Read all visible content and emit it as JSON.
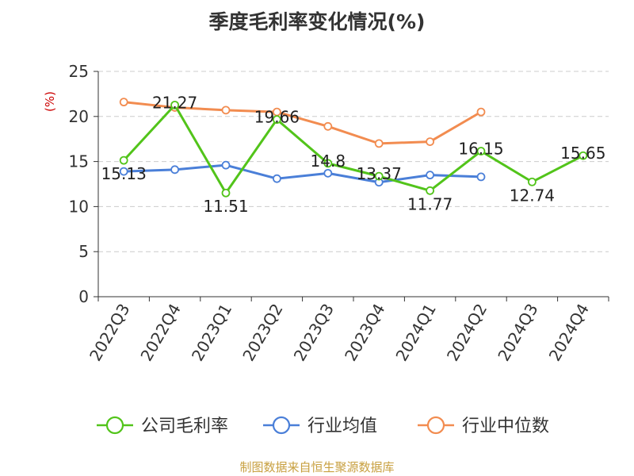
{
  "chart_data": {
    "type": "line",
    "title": "季度毛利率变化情况(%)",
    "y_unit": "(%)",
    "categories": [
      "2022Q3",
      "2022Q4",
      "2023Q1",
      "2023Q2",
      "2023Q3",
      "2023Q4",
      "2024Q1",
      "2024Q2",
      "2024Q3",
      "2024Q4"
    ],
    "ylim": [
      0,
      25
    ],
    "yticks": [
      0,
      5,
      10,
      15,
      20,
      25
    ],
    "grid": true,
    "legend_position": "bottom",
    "series": [
      {
        "name": "公司毛利率",
        "color": "#52c41a",
        "show_labels": true,
        "values": [
          15.13,
          21.27,
          11.51,
          19.66,
          14.8,
          13.37,
          11.77,
          16.15,
          12.74,
          15.65
        ],
        "labels": [
          "15.13",
          "21.27",
          "11.51",
          "19.66",
          "14.8",
          "13.37",
          "11.77",
          "16.15",
          "12.74",
          "15.65"
        ]
      },
      {
        "name": "行业均值",
        "color": "#4a7fd8",
        "show_labels": false,
        "values": [
          13.9,
          14.1,
          14.6,
          13.1,
          13.7,
          12.7,
          13.5,
          13.3,
          null,
          null
        ]
      },
      {
        "name": "行业中位数",
        "color": "#f28c50",
        "show_labels": false,
        "values": [
          21.6,
          21.0,
          20.7,
          20.5,
          18.9,
          17.0,
          17.2,
          20.5,
          null,
          null
        ]
      }
    ]
  },
  "source_text": "制图数据来自恒生聚源数据库"
}
